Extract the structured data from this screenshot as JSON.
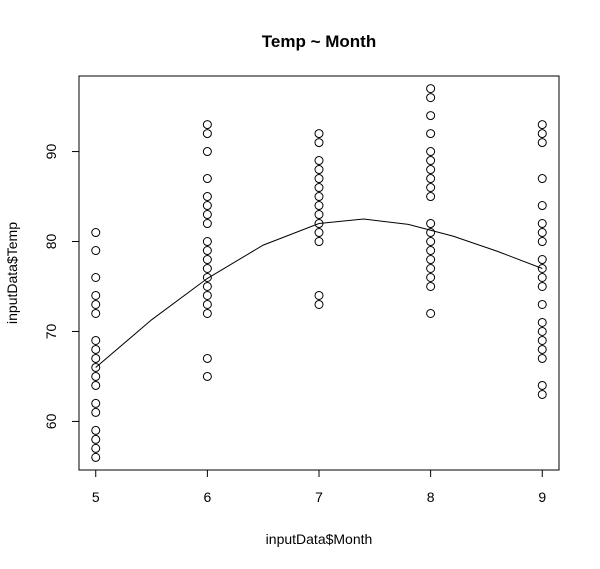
{
  "chart_data": {
    "type": "scatter",
    "title": "Temp ~ Month",
    "xlabel": "inputData$Month",
    "ylabel": "inputData$Temp",
    "xlim": [
      4.85,
      9.15
    ],
    "ylim": [
      54.6,
      98.4
    ],
    "xticks": [
      5,
      6,
      7,
      8,
      9
    ],
    "yticks": [
      60,
      70,
      80,
      90
    ],
    "grid": false,
    "points": [
      {
        "month": 5,
        "temps": [
          81,
          79,
          76,
          74,
          73,
          72,
          69,
          68,
          67,
          66,
          65,
          64,
          62,
          61,
          59,
          58,
          57,
          56
        ]
      },
      {
        "month": 6,
        "temps": [
          93,
          92,
          90,
          87,
          85,
          84,
          83,
          82,
          80,
          79,
          78,
          77,
          76,
          75,
          74,
          73,
          72,
          67,
          65
        ]
      },
      {
        "month": 7,
        "temps": [
          92,
          91,
          89,
          88,
          87,
          86,
          85,
          84,
          83,
          82,
          81,
          80,
          74,
          73
        ]
      },
      {
        "month": 8,
        "temps": [
          97,
          96,
          94,
          92,
          90,
          89,
          88,
          87,
          86,
          85,
          82,
          81,
          80,
          79,
          78,
          77,
          76,
          75,
          72
        ]
      },
      {
        "month": 9,
        "temps": [
          93,
          92,
          91,
          87,
          84,
          82,
          81,
          80,
          78,
          77,
          76,
          75,
          73,
          71,
          70,
          69,
          68,
          67,
          64,
          63
        ]
      }
    ],
    "smooth_line": {
      "x": [
        5,
        5.5,
        6,
        6.5,
        7,
        7.4,
        7.8,
        8.2,
        8.6,
        9
      ],
      "y": [
        66,
        71.3,
        75.9,
        79.6,
        82,
        82.5,
        81.9,
        80.6,
        78.9,
        77
      ]
    }
  }
}
